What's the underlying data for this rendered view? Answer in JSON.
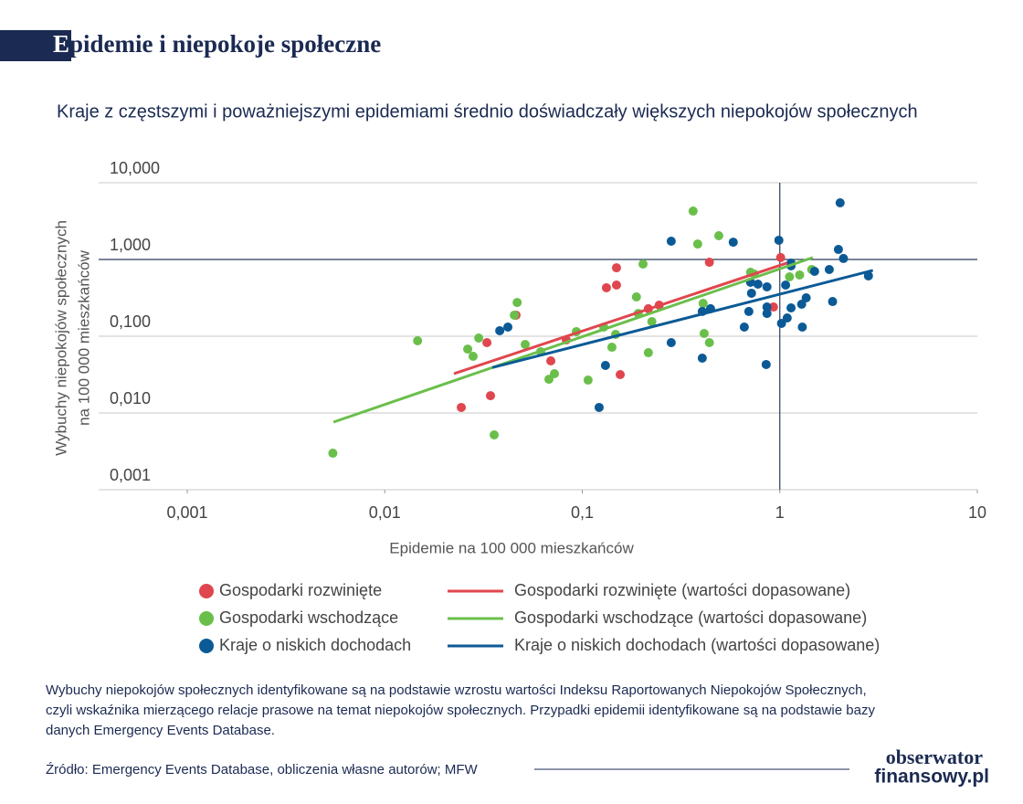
{
  "title": "Epidemie i niepokoje społeczne",
  "chart_data": {
    "type": "scatter",
    "subtitle": "Kraje z częstszymi i poważniejszymi epidemiami średnio doświadczały większych niepokojów społecznych",
    "xlabel": "Epidemie na 100 000 mieszkańców",
    "ylabel": [
      "Wybuchy niepokojów społecznych",
      "na 100 000 mieszkańców"
    ],
    "xscale": "log",
    "yscale": "log",
    "grid": true,
    "xlim": [
      0.000356,
      10
    ],
    "ylim": [
      0.001,
      10
    ],
    "xticks": [
      {
        "value": 0.001,
        "label": "0,001"
      },
      {
        "value": 0.01,
        "label": "0,01"
      },
      {
        "value": 0.1,
        "label": "0,1"
      },
      1,
      10
    ],
    "yticks": [
      {
        "value": 10,
        "label": "10,000"
      },
      {
        "value": 1,
        "label": "1,000"
      },
      {
        "value": 0.1,
        "label": "0,100"
      },
      {
        "value": 0.01,
        "label": "0,010"
      },
      {
        "value": 0.001,
        "label": "0,001"
      }
    ],
    "ref_lines": {
      "x": 1,
      "y": 1
    },
    "series": [
      {
        "name": "Gospodarki rozwinięte",
        "mode": "markers",
        "color": "#e0464e",
        "x": [
          0.0244,
          0.0329,
          0.0343,
          0.0462,
          0.0693,
          0.083,
          0.1325,
          0.149,
          0.149,
          0.1556,
          0.216,
          0.245,
          0.44,
          0.929,
          1.01
        ],
        "values": [
          0.0118,
          0.0826,
          0.0168,
          0.188,
          0.0477,
          0.0896,
          0.428,
          0.78,
          0.464,
          0.0316,
          0.228,
          0.254,
          0.92,
          0.24,
          1.06
        ]
      },
      {
        "name": "Gospodarki wschodzące",
        "mode": "markers",
        "color": "#6abf4b",
        "x": [
          0.00546,
          0.01466,
          0.0263,
          0.028,
          0.0299,
          0.0358,
          0.0514,
          0.0453,
          0.0468,
          0.0616,
          0.0678,
          0.0723,
          0.0933,
          0.107,
          0.1284,
          0.1412,
          0.1475,
          0.188,
          0.192,
          0.203,
          0.225,
          0.216,
          0.364,
          0.384,
          0.409,
          0.414,
          0.44,
          0.491,
          0.711,
          0.743,
          1.12,
          1.26,
          1.45
        ],
        "values": [
          0.00299,
          0.0872,
          0.068,
          0.0547,
          0.0947,
          0.00518,
          0.0781,
          0.188,
          0.275,
          0.0628,
          0.0275,
          0.0325,
          0.1148,
          0.0268,
          0.1315,
          0.0719,
          0.1056,
          0.325,
          0.198,
          0.872,
          0.155,
          0.061,
          4.27,
          1.59,
          0.268,
          0.1086,
          0.0826,
          2.04,
          0.681,
          0.645,
          0.594,
          0.628,
          0.74
        ]
      },
      {
        "name": "Kraje o niskich dochodach",
        "mode": "markers",
        "color": "#0b5a96",
        "x": [
          0.0382,
          0.042,
          0.1217,
          0.131,
          0.282,
          0.282,
          0.405,
          0.405,
          0.446,
          0.581,
          0.661,
          0.697,
          0.711,
          0.719,
          0.775,
          0.861,
          0.853,
          0.861,
          0.861,
          0.989,
          1.02,
          1.07,
          1.09,
          1.14,
          1.14,
          1.14,
          1.29,
          1.3,
          1.36,
          1.5,
          1.78,
          1.85,
          1.98,
          2.02,
          2.1,
          2.81
        ],
        "values": [
          0.118,
          0.1315,
          0.0118,
          0.0416,
          1.73,
          0.0826,
          0.0518,
          0.21,
          0.228,
          1.68,
          0.1315,
          0.21,
          0.504,
          0.363,
          0.477,
          0.44,
          0.0428,
          0.24,
          0.198,
          1.78,
          0.147,
          0.464,
          0.173,
          0.826,
          0.896,
          0.234,
          0.261,
          0.1315,
          0.316,
          0.7,
          0.74,
          0.283,
          1.35,
          5.47,
          1.03,
          0.611
        ]
      },
      {
        "name": "Gospodarki rozwinięte (wartości dopasowane)",
        "mode": "line",
        "color": "#e0464e",
        "x": [
          0.0224,
          1.09
        ],
        "values": [
          0.0325,
          0.9
        ]
      },
      {
        "name": "Gospodarki wschodzące (wartości dopasowane)",
        "mode": "line",
        "color": "#6abf4b",
        "x": [
          0.0055,
          1.47
        ],
        "values": [
          0.0076,
          1.06
        ]
      },
      {
        "name": "Kraje o niskich dochodach (wartości dopasowane)",
        "mode": "line",
        "color": "#0b5a96",
        "x": [
          0.035,
          2.96
        ],
        "values": [
          0.039,
          0.72
        ]
      }
    ]
  },
  "note": [
    "Wybuchy niepokojów społecznych identyfikowane są na podstawie wzrostu wartości Indeksu Raportowanych Niepokojów Społecznych,",
    "czyli wskaźnika mierzącego relacje prasowe na temat niepokojów społecznych. Przypadki epidemii identyfikowane są na podstawie bazy",
    "danych Emergency Events Database."
  ],
  "source": "Źródło: Emergency Events Database, obliczenia własne autorów; MFW",
  "logo": [
    "obserwator",
    "finansowy.pl"
  ]
}
